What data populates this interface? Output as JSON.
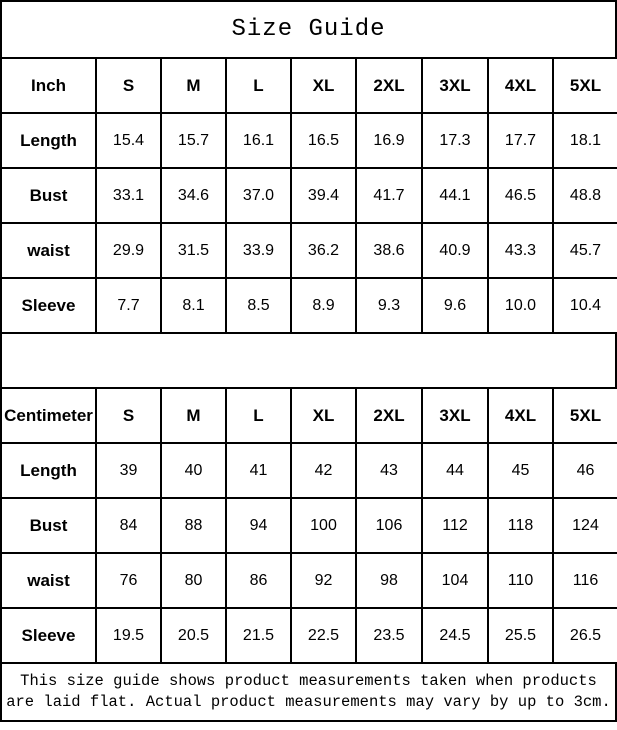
{
  "title": "Size Guide",
  "colors": {
    "border": "#000000",
    "background": "#ffffff",
    "text": "#000000"
  },
  "tables": [
    {
      "unit_header": "Inch",
      "size_columns": [
        "S",
        "M",
        "L",
        "XL",
        "2XL",
        "3XL",
        "4XL",
        "5XL"
      ],
      "rows": [
        {
          "label": "Length",
          "values": [
            "15.4",
            "15.7",
            "16.1",
            "16.5",
            "16.9",
            "17.3",
            "17.7",
            "18.1"
          ]
        },
        {
          "label": "Bust",
          "values": [
            "33.1",
            "34.6",
            "37.0",
            "39.4",
            "41.7",
            "44.1",
            "46.5",
            "48.8"
          ]
        },
        {
          "label": "waist",
          "values": [
            "29.9",
            "31.5",
            "33.9",
            "36.2",
            "38.6",
            "40.9",
            "43.3",
            "45.7"
          ]
        },
        {
          "label": "Sleeve",
          "values": [
            "7.7",
            "8.1",
            "8.5",
            "8.9",
            "9.3",
            "9.6",
            "10.0",
            "10.4"
          ]
        }
      ]
    },
    {
      "unit_header": "Centimeter",
      "size_columns": [
        "S",
        "M",
        "L",
        "XL",
        "2XL",
        "3XL",
        "4XL",
        "5XL"
      ],
      "rows": [
        {
          "label": "Length",
          "values": [
            "39",
            "40",
            "41",
            "42",
            "43",
            "44",
            "45",
            "46"
          ]
        },
        {
          "label": "Bust",
          "values": [
            "84",
            "88",
            "94",
            "100",
            "106",
            "112",
            "118",
            "124"
          ]
        },
        {
          "label": "waist",
          "values": [
            "76",
            "80",
            "86",
            "92",
            "98",
            "104",
            "110",
            "116"
          ]
        },
        {
          "label": "Sleeve",
          "values": [
            "19.5",
            "20.5",
            "21.5",
            "22.5",
            "23.5",
            "24.5",
            "25.5",
            "26.5"
          ]
        }
      ]
    }
  ],
  "footer": {
    "line1": "This size guide shows product measurements taken when products",
    "line2": "are laid flat. Actual product measurements may vary by up to 3cm."
  }
}
